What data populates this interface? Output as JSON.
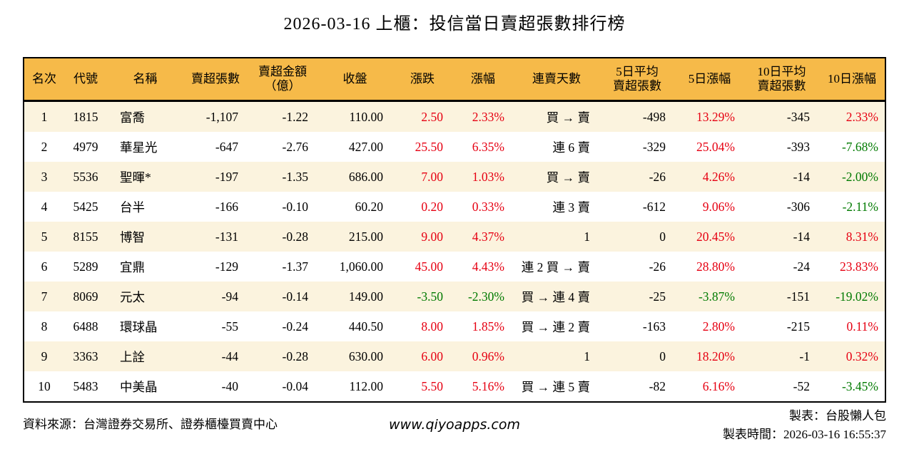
{
  "title": "2026-03-16 上櫃：投信當日賣超張數排行榜",
  "colors": {
    "red": "#e60012",
    "green": "#007a00",
    "header_bg": "#f6ba49",
    "row_alt_bg": "#fbf3de",
    "border": "#000000"
  },
  "table": {
    "headers": [
      {
        "line1": "名次",
        "line2": ""
      },
      {
        "line1": "代號",
        "line2": ""
      },
      {
        "line1": "名稱",
        "line2": ""
      },
      {
        "line1": "賣超張數",
        "line2": ""
      },
      {
        "line1": "賣超金額",
        "line2": "（億）"
      },
      {
        "line1": "收盤",
        "line2": ""
      },
      {
        "line1": "漲跌",
        "line2": ""
      },
      {
        "line1": "漲幅",
        "line2": ""
      },
      {
        "line1": "連賣天數",
        "line2": ""
      },
      {
        "line1": "5日平均",
        "line2": "賣超張數"
      },
      {
        "line1": "5日漲幅",
        "line2": ""
      },
      {
        "line1": "10日平均",
        "line2": "賣超張數"
      },
      {
        "line1": "10日漲幅",
        "line2": ""
      }
    ],
    "rows": [
      {
        "rank": "1",
        "code": "1815",
        "name": "富喬",
        "net_sell": "-1,107",
        "amount": "-1.22",
        "close": "110.00",
        "change": "2.50",
        "change_color": "red",
        "change_pct": "2.33%",
        "change_pct_color": "red",
        "streak": "買 → 賣",
        "avg5": "-498",
        "pct5": "13.29%",
        "pct5_color": "red",
        "avg10": "-345",
        "pct10": "2.33%",
        "pct10_color": "red"
      },
      {
        "rank": "2",
        "code": "4979",
        "name": "華星光",
        "net_sell": "-647",
        "amount": "-2.76",
        "close": "427.00",
        "change": "25.50",
        "change_color": "red",
        "change_pct": "6.35%",
        "change_pct_color": "red",
        "streak": "連 6 賣",
        "avg5": "-329",
        "pct5": "25.04%",
        "pct5_color": "red",
        "avg10": "-393",
        "pct10": "-7.68%",
        "pct10_color": "green"
      },
      {
        "rank": "3",
        "code": "5536",
        "name": "聖暉*",
        "net_sell": "-197",
        "amount": "-1.35",
        "close": "686.00",
        "change": "7.00",
        "change_color": "red",
        "change_pct": "1.03%",
        "change_pct_color": "red",
        "streak": "買 → 賣",
        "avg5": "-26",
        "pct5": "4.26%",
        "pct5_color": "red",
        "avg10": "-14",
        "pct10": "-2.00%",
        "pct10_color": "green"
      },
      {
        "rank": "4",
        "code": "5425",
        "name": "台半",
        "net_sell": "-166",
        "amount": "-0.10",
        "close": "60.20",
        "change": "0.20",
        "change_color": "red",
        "change_pct": "0.33%",
        "change_pct_color": "red",
        "streak": "連 3 賣",
        "avg5": "-612",
        "pct5": "9.06%",
        "pct5_color": "red",
        "avg10": "-306",
        "pct10": "-2.11%",
        "pct10_color": "green"
      },
      {
        "rank": "5",
        "code": "8155",
        "name": "博智",
        "net_sell": "-131",
        "amount": "-0.28",
        "close": "215.00",
        "change": "9.00",
        "change_color": "red",
        "change_pct": "4.37%",
        "change_pct_color": "red",
        "streak": "1",
        "avg5": "0",
        "pct5": "20.45%",
        "pct5_color": "red",
        "avg10": "-14",
        "pct10": "8.31%",
        "pct10_color": "red"
      },
      {
        "rank": "6",
        "code": "5289",
        "name": "宜鼎",
        "net_sell": "-129",
        "amount": "-1.37",
        "close": "1,060.00",
        "change": "45.00",
        "change_color": "red",
        "change_pct": "4.43%",
        "change_pct_color": "red",
        "streak": "連 2 買 → 賣",
        "avg5": "-26",
        "pct5": "28.80%",
        "pct5_color": "red",
        "avg10": "-24",
        "pct10": "23.83%",
        "pct10_color": "red"
      },
      {
        "rank": "7",
        "code": "8069",
        "name": "元太",
        "net_sell": "-94",
        "amount": "-0.14",
        "close": "149.00",
        "change": "-3.50",
        "change_color": "green",
        "change_pct": "-2.30%",
        "change_pct_color": "green",
        "streak": "買 → 連 4 賣",
        "avg5": "-25",
        "pct5": "-3.87%",
        "pct5_color": "green",
        "avg10": "-151",
        "pct10": "-19.02%",
        "pct10_color": "green"
      },
      {
        "rank": "8",
        "code": "6488",
        "name": "環球晶",
        "net_sell": "-55",
        "amount": "-0.24",
        "close": "440.50",
        "change": "8.00",
        "change_color": "red",
        "change_pct": "1.85%",
        "change_pct_color": "red",
        "streak": "買 → 連 2 賣",
        "avg5": "-163",
        "pct5": "2.80%",
        "pct5_color": "red",
        "avg10": "-215",
        "pct10": "0.11%",
        "pct10_color": "red"
      },
      {
        "rank": "9",
        "code": "3363",
        "name": "上詮",
        "net_sell": "-44",
        "amount": "-0.28",
        "close": "630.00",
        "change": "6.00",
        "change_color": "red",
        "change_pct": "0.96%",
        "change_pct_color": "red",
        "streak": "1",
        "avg5": "0",
        "pct5": "18.20%",
        "pct5_color": "red",
        "avg10": "-1",
        "pct10": "0.32%",
        "pct10_color": "red"
      },
      {
        "rank": "10",
        "code": "5483",
        "name": "中美晶",
        "net_sell": "-40",
        "amount": "-0.04",
        "close": "112.00",
        "change": "5.50",
        "change_color": "red",
        "change_pct": "5.16%",
        "change_pct_color": "red",
        "streak": "買 → 連 5 賣",
        "avg5": "-82",
        "pct5": "6.16%",
        "pct5_color": "red",
        "avg10": "-52",
        "pct10": "-3.45%",
        "pct10_color": "green"
      }
    ]
  },
  "footer": {
    "source": "資料來源：台灣證券交易所、證券櫃檯買賣中心",
    "website": "www.qiyoapps.com",
    "maker": "製表：台股懶人包",
    "timestamp": "製表時間：2026-03-16 16:55:37"
  }
}
